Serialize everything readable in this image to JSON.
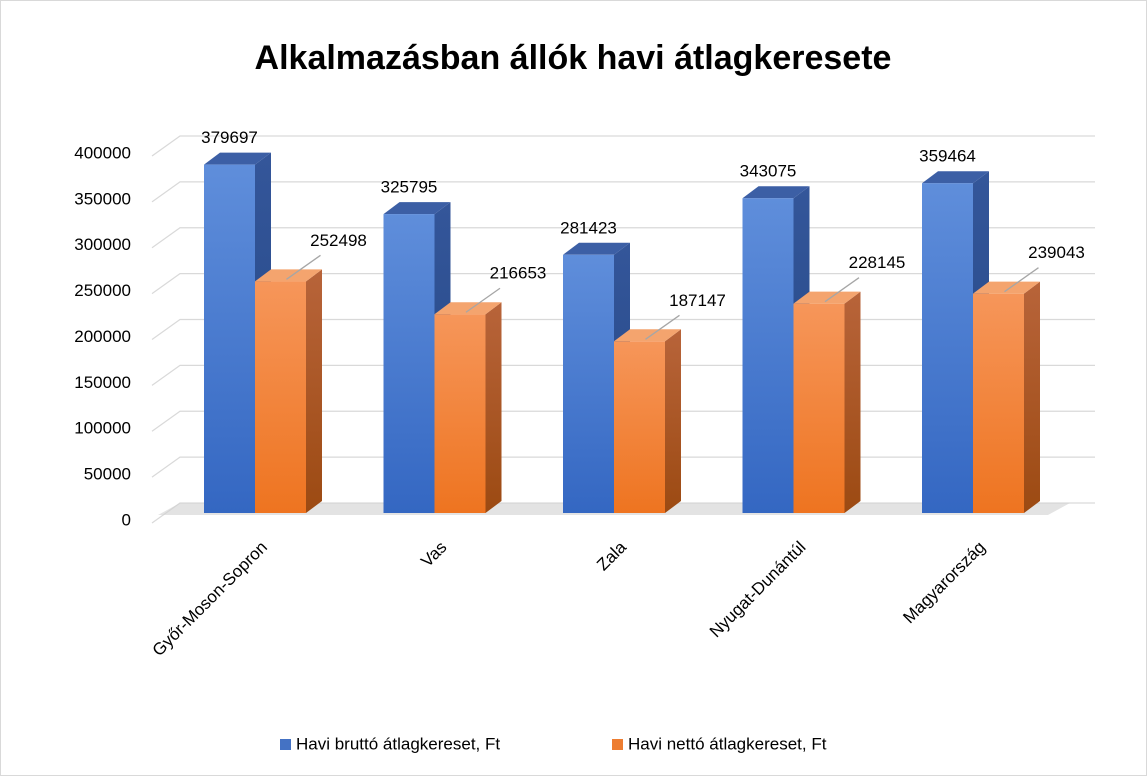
{
  "chart_data": {
    "type": "bar",
    "title": "Alkalmazásban állók havi átlagkeresete",
    "categories": [
      "Győr-Moson-Sopron",
      "Vas",
      "Zala",
      "Nyugat-Dunántúl",
      "Magyarország"
    ],
    "series": [
      {
        "name": "Havi bruttó átlagkereset, Ft",
        "color": "#4472c4",
        "values": [
          379697,
          325795,
          281423,
          343075,
          359464
        ]
      },
      {
        "name": "Havi nettó átlagkereset, Ft",
        "color": "#ed7d31",
        "values": [
          252498,
          216653,
          187147,
          228145,
          239043
        ]
      }
    ],
    "ylim": [
      0,
      400000
    ],
    "yticks": [
      0,
      50000,
      100000,
      150000,
      200000,
      250000,
      300000,
      350000,
      400000
    ],
    "grid": true
  }
}
